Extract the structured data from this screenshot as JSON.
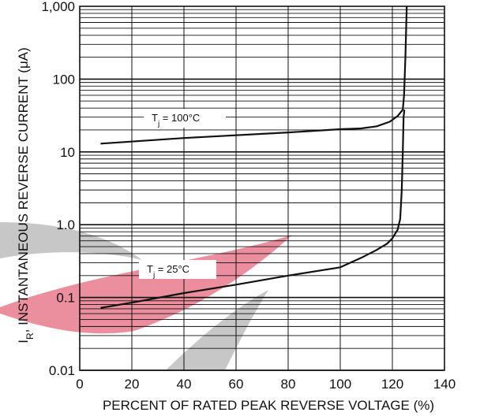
{
  "chart_data": {
    "type": "line",
    "xlabel": "PERCENT OF RATED PEAK REVERSE VOLTAGE (%)",
    "ylabel_main": "INSTANTANEOUS REVERSE CURRENT (μA)",
    "ylabel_prefix": "I",
    "ylabel_sub": "R",
    "xlim": [
      0,
      140
    ],
    "ylim": [
      0.01,
      1000
    ],
    "yscale": "log",
    "grid": true,
    "x_ticks": [
      {
        "value": 0,
        "label": "0"
      },
      {
        "value": 20,
        "label": "20"
      },
      {
        "value": 40,
        "label": "40"
      },
      {
        "value": 60,
        "label": "60"
      },
      {
        "value": 80,
        "label": "80"
      },
      {
        "value": 100,
        "label": "100"
      },
      {
        "value": 120,
        "label": "120"
      },
      {
        "value": 140,
        "label": "140"
      }
    ],
    "y_ticks": [
      {
        "value": 0.01,
        "label": "0.01"
      },
      {
        "value": 0.1,
        "label": "0.1"
      },
      {
        "value": 1,
        "label": "1.0"
      },
      {
        "value": 10,
        "label": "10"
      },
      {
        "value": 100,
        "label": "100"
      },
      {
        "value": 1000,
        "label": "1,000"
      }
    ],
    "series": [
      {
        "label_main": "T",
        "label_sub": "j",
        "label_rest": " = 100°C",
        "points": [
          [
            8,
            13
          ],
          [
            40,
            15.5
          ],
          [
            80,
            18.5
          ],
          [
            100,
            20.5
          ],
          [
            108,
            21
          ],
          [
            114,
            22.5
          ],
          [
            119,
            26
          ],
          [
            122,
            31
          ],
          [
            124,
            38
          ],
          [
            124.5,
            60
          ],
          [
            125,
            200
          ],
          [
            125.5,
            1000
          ]
        ]
      },
      {
        "label_main": "T",
        "label_sub": "j",
        "label_rest": " = 25°C",
        "points": [
          [
            8,
            0.072
          ],
          [
            20,
            0.085
          ],
          [
            40,
            0.115
          ],
          [
            60,
            0.15
          ],
          [
            80,
            0.2
          ],
          [
            100,
            0.26
          ],
          [
            108,
            0.35
          ],
          [
            114,
            0.45
          ],
          [
            118,
            0.55
          ],
          [
            120,
            0.65
          ],
          [
            122,
            0.85
          ],
          [
            123,
            1.2
          ],
          [
            123.6,
            3
          ],
          [
            124,
            10
          ],
          [
            124.3,
            30
          ],
          [
            124.6,
            38
          ]
        ]
      }
    ],
    "colors": {
      "line": "#111111",
      "grid": "#111111",
      "background": "#ffffff",
      "watermark_red": "#e46a7e",
      "watermark_gray": "#a2a2a2"
    }
  }
}
